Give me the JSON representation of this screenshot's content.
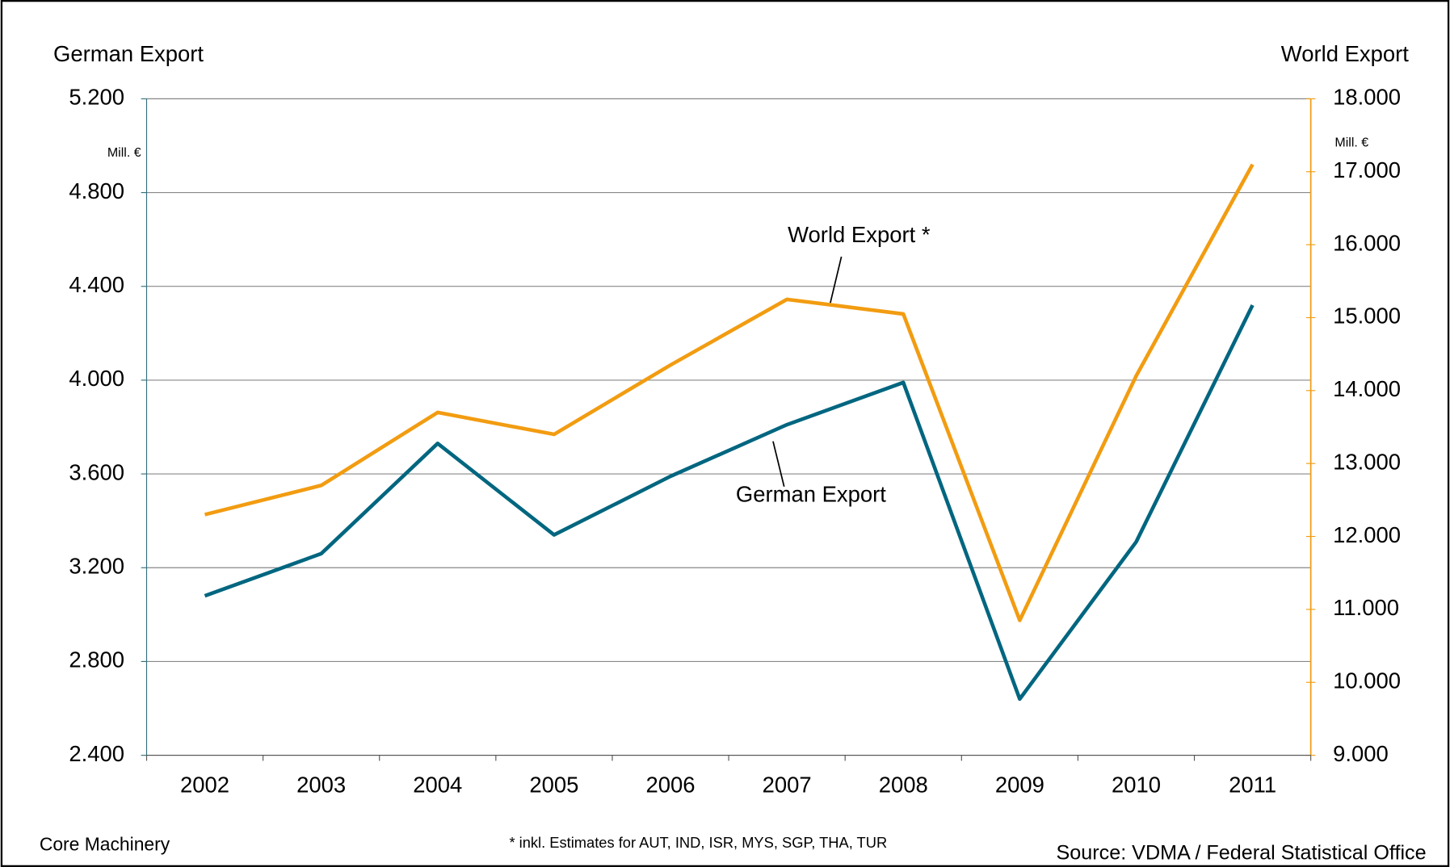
{
  "chart_data": {
    "type": "line",
    "y_label": "German Export",
    "y2_label": "World Export",
    "y_unit": "Mill. €",
    "y2_unit": "Mill. €",
    "categories": [
      "2002",
      "2003",
      "2004",
      "2005",
      "2006",
      "2007",
      "2008",
      "2009",
      "2010",
      "2011"
    ],
    "series": [
      {
        "name": "German Export",
        "color": "#006680",
        "values": [
          3080,
          3260,
          3730,
          3340,
          3590,
          3810,
          3990,
          2640,
          3310,
          4320
        ]
      },
      {
        "name": "World Export *",
        "color": "#f29c11",
        "axis": "y2",
        "values": [
          12300,
          12700,
          13700,
          13400,
          14350,
          15250,
          15050,
          10850,
          14200,
          17100
        ]
      }
    ],
    "ylim": [
      2400,
      5200
    ],
    "yticks": [
      {
        "value": 2400,
        "label": "2.400"
      },
      {
        "value": 2800,
        "label": "2.800"
      },
      {
        "value": 3200,
        "label": "3.200"
      },
      {
        "value": 3600,
        "label": "3.600"
      },
      {
        "value": 4000,
        "label": "4.000"
      },
      {
        "value": 4400,
        "label": "4.400"
      },
      {
        "value": 4800,
        "label": "4.800"
      },
      {
        "value": 5200,
        "label": "5.200"
      }
    ],
    "y2lim": [
      9000,
      18000
    ],
    "y2ticks": [
      {
        "value": 9000,
        "label": "9.000"
      },
      {
        "value": 10000,
        "label": "10.000"
      },
      {
        "value": 11000,
        "label": "11.000"
      },
      {
        "value": 12000,
        "label": "12.000"
      },
      {
        "value": 13000,
        "label": "13.000"
      },
      {
        "value": 14000,
        "label": "14.000"
      },
      {
        "value": 15000,
        "label": "15.000"
      },
      {
        "value": 16000,
        "label": "16.000"
      },
      {
        "value": 17000,
        "label": "17.000"
      },
      {
        "value": 18000,
        "label": "18.000"
      }
    ],
    "grid": true,
    "footer_left": "Core Machinery",
    "footnote": "* inkl. Estimates for AUT, IND, ISR, MYS, SGP, THA, TUR",
    "source": "Source: VDMA / Federal Statistical Office"
  }
}
